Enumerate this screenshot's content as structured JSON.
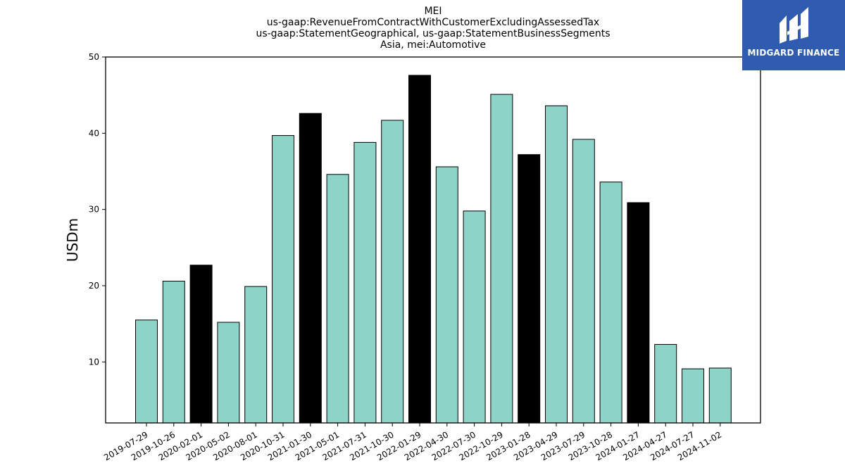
{
  "title_lines": [
    "MEI",
    "us-gaap:RevenueFromContractWithCustomerExcludingAssessedTax",
    "us-gaap:StatementGeographical, us-gaap:StatementBusinessSegments",
    "Asia, mei:Automotive"
  ],
  "logo": {
    "text": "MIDGARD FINANCE",
    "color": "#2f5caf"
  },
  "chart_data": {
    "type": "bar",
    "ylabel": "USDm",
    "xlabel": "",
    "ylim": [
      2,
      50
    ],
    "yticks": [
      10,
      20,
      30,
      40,
      50
    ],
    "categories": [
      "2019-07-29",
      "2019-10-26",
      "2020-02-01",
      "2020-05-02",
      "2020-08-01",
      "2020-10-31",
      "2021-01-30",
      "2021-05-01",
      "2021-07-31",
      "2021-10-30",
      "2022-01-29",
      "2022-04-30",
      "2022-07-30",
      "2022-10-29",
      "2023-01-28",
      "2023-04-29",
      "2023-07-29",
      "2023-10-28",
      "2024-01-27",
      "2024-04-27",
      "2024-07-27",
      "2024-11-02"
    ],
    "values": [
      15.5,
      20.6,
      22.7,
      15.2,
      19.9,
      39.7,
      42.6,
      34.6,
      38.8,
      41.7,
      47.6,
      35.6,
      29.8,
      45.1,
      37.2,
      43.6,
      39.2,
      33.6,
      30.9,
      12.3,
      9.1,
      9.2
    ],
    "highlight": [
      false,
      false,
      true,
      false,
      false,
      false,
      true,
      false,
      false,
      false,
      true,
      false,
      false,
      false,
      true,
      false,
      false,
      false,
      true,
      false,
      false,
      false
    ],
    "colors": {
      "normal": "#8dd3c7",
      "highlight": "#000000",
      "edge": "#000000"
    },
    "grid": false,
    "legend": "none"
  }
}
